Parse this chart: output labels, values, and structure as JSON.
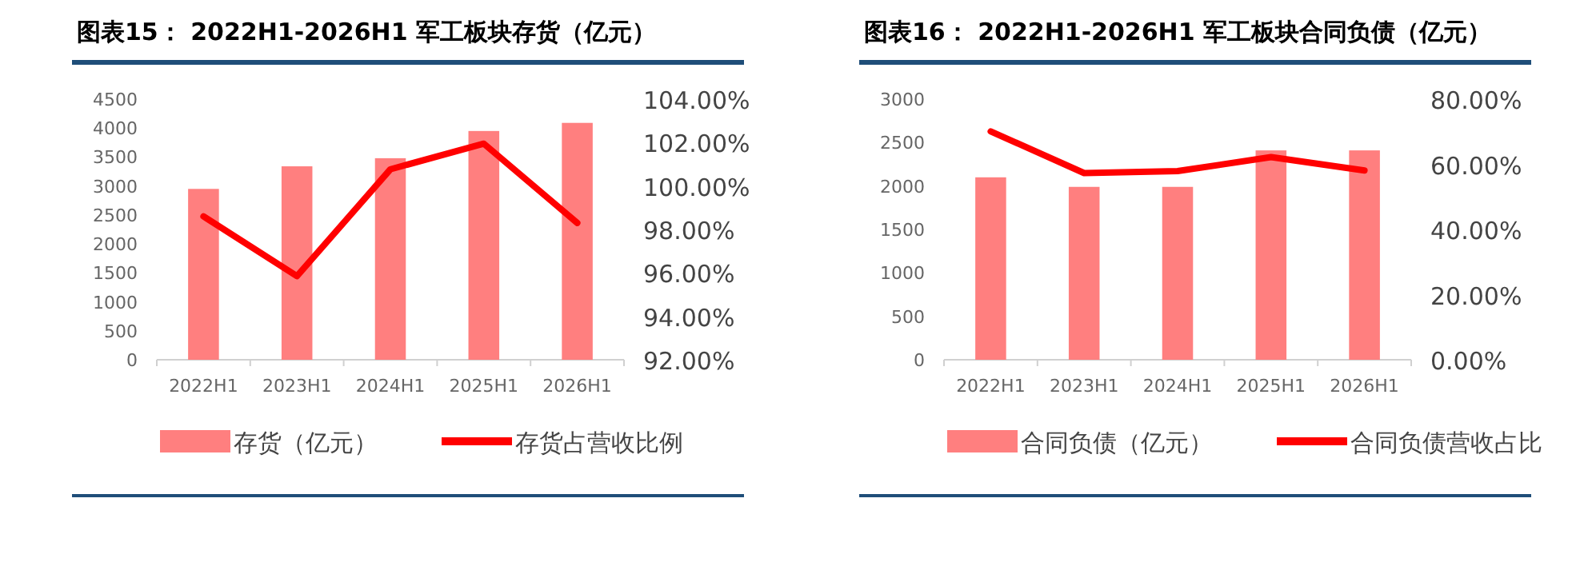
{
  "chart_data": [
    {
      "type": "bar",
      "title": "图表15： 2022H1-2026H1 军工板块存货（亿元）",
      "categories": [
        "2022H1",
        "2023H1",
        "2024H1",
        "2025H1",
        "2026H1"
      ],
      "series": [
        {
          "name": "存货（亿元）",
          "color": "#ff7f7f",
          "values": [
            2950,
            3340,
            3480,
            3950,
            4090
          ]
        },
        {
          "name": "存货占营收比例",
          "type": "line",
          "axis": "y2",
          "color": "#ff0000",
          "values": [
            98.6,
            95.85,
            100.77,
            101.95,
            98.3
          ]
        }
      ],
      "ylim": [
        0,
        4500
      ],
      "yticks": [
        0,
        500,
        1000,
        1500,
        2000,
        2500,
        3000,
        3500,
        4000,
        4500
      ],
      "y2lim": [
        92,
        104
      ],
      "y2ticks": [
        {
          "value": 92,
          "label": "92.00%"
        },
        {
          "value": 94,
          "label": "94.00%"
        },
        {
          "value": 96,
          "label": "96.00%"
        },
        {
          "value": 98,
          "label": "98.00%"
        },
        {
          "value": 100,
          "label": "100.00%"
        },
        {
          "value": 102,
          "label": "102.00%"
        },
        {
          "value": 104,
          "label": "104.00%"
        }
      ],
      "legend": "bottom"
    },
    {
      "type": "bar",
      "title": "图表16： 2022H1-2026H1 军工板块合同负债（亿元）",
      "categories": [
        "2022H1",
        "2023H1",
        "2024H1",
        "2025H1",
        "2026H1"
      ],
      "series": [
        {
          "name": "合同负债（亿元）",
          "color": "#ff7f7f",
          "values": [
            2100,
            1990,
            1990,
            2410,
            2410
          ]
        },
        {
          "name": "合同负债营收占比",
          "type": "line",
          "axis": "y2",
          "color": "#ff0000",
          "values": [
            70.1,
            57.3,
            57.9,
            62.2,
            58.1
          ]
        }
      ],
      "ylim": [
        0,
        3000
      ],
      "yticks": [
        0,
        500,
        1000,
        1500,
        2000,
        2500,
        3000
      ],
      "y2lim": [
        0,
        80
      ],
      "y2ticks": [
        {
          "value": 0,
          "label": "0.00%"
        },
        {
          "value": 20,
          "label": "20.00%"
        },
        {
          "value": 40,
          "label": "40.00%"
        },
        {
          "value": 60,
          "label": "60.00%"
        },
        {
          "value": 80,
          "label": "80.00%"
        }
      ],
      "legend": "bottom"
    }
  ]
}
